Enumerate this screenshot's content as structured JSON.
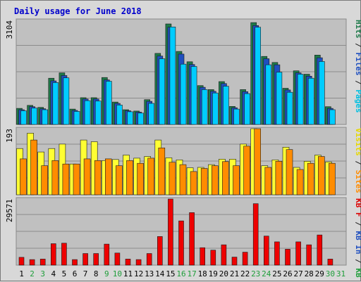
{
  "chart_data": {
    "type": "bar",
    "title": "Daily usage for June 2018",
    "categories": [
      "1",
      "2",
      "3",
      "4",
      "5",
      "6",
      "7",
      "8",
      "9",
      "10",
      "11",
      "12",
      "13",
      "14",
      "15",
      "16",
      "17",
      "18",
      "19",
      "20",
      "21",
      "22",
      "23",
      "24",
      "25",
      "26",
      "27",
      "28",
      "29",
      "30",
      "31"
    ],
    "weekend_days": [
      "2",
      "3",
      "9",
      "10",
      "16",
      "17",
      "23",
      "24",
      "30",
      "31"
    ],
    "panels": [
      {
        "id": "hits",
        "max_label": "3104",
        "ymax": 3104,
        "right_labels": [
          {
            "text": "Hits",
            "color": "#1e7a4a"
          },
          {
            "text": " / ",
            "color": "#222222"
          },
          {
            "text": "Files",
            "color": "#1f4fbf"
          },
          {
            "text": " / ",
            "color": "#222222"
          },
          {
            "text": "Pages",
            "color": "#00bfe0"
          }
        ],
        "series": [
          {
            "name": "Hits",
            "color": "#1e7a4a",
            "values": [
              480,
              570,
              510,
              1380,
              1540,
              460,
              800,
              800,
              1400,
              670,
              440,
              400,
              740,
              2120,
              3000,
              2180,
              1870,
              1160,
              1040,
              1280,
              540,
              1040,
              3040,
              2030,
              1850,
              1080,
              1600,
              1500,
              2070,
              530,
              0
            ]
          },
          {
            "name": "Files",
            "color": "#1f4fbf",
            "values": [
              440,
              530,
              470,
              1300,
              1460,
              420,
              760,
              760,
              1330,
              630,
              410,
              370,
              690,
              2040,
              2900,
              2100,
              1790,
              1110,
              990,
              1220,
              500,
              980,
              2950,
              1960,
              1780,
              1030,
              1540,
              1440,
              1990,
              480,
              0
            ]
          },
          {
            "name": "Pages",
            "color": "#00ccff",
            "values": [
              410,
              490,
              440,
              1250,
              1390,
              390,
              710,
              700,
              1290,
              580,
              380,
              340,
              630,
              1960,
              2910,
              1800,
              1730,
              1040,
              940,
              1140,
              460,
              920,
              2900,
              1780,
              1560,
              960,
              1500,
              1380,
              1880,
              440,
              0
            ]
          }
        ]
      },
      {
        "id": "visits",
        "max_label": "193",
        "ymax": 193,
        "right_labels": [
          {
            "text": "Visits",
            "color": "#e6d800"
          },
          {
            "text": " / ",
            "color": "#222222"
          },
          {
            "text": "Sites",
            "color": "#ff8c00"
          }
        ],
        "series": [
          {
            "name": "Visits",
            "color": "#ffff33",
            "values": [
              135,
              180,
              125,
              135,
              148,
              90,
              160,
              155,
              100,
              103,
              116,
              107,
              112,
              160,
              108,
              102,
              79,
              80,
              88,
              104,
              104,
              148,
              193,
              85,
              102,
              139,
              80,
              98,
              116,
              96,
              0
            ]
          },
          {
            "name": "Sites",
            "color": "#ff8c00",
            "values": [
              105,
              160,
              85,
              100,
              90,
              90,
              105,
              100,
              105,
              85,
              100,
              92,
              107,
              137,
              95,
              88,
              68,
              77,
              85,
              97,
              85,
              142,
              193,
              80,
              98,
              132,
              74,
              92,
              112,
              92,
              0
            ]
          }
        ]
      },
      {
        "id": "kbytes",
        "max_label": "29571",
        "ymax": 29571,
        "right_labels": [
          {
            "text": "KB F",
            "color": "#dd0000"
          },
          {
            "text": " / ",
            "color": "#222222"
          },
          {
            "text": "KB In",
            "color": "#1f4fbf"
          },
          {
            "text": " / ",
            "color": "#222222"
          },
          {
            "text": "KB Out",
            "color": "#1e9e3a"
          }
        ],
        "series": [
          {
            "name": "KB F",
            "color": "#ee0000",
            "values": [
              3500,
              2500,
              2700,
              9600,
              9800,
              2500,
              5200,
              5200,
              9400,
              5400,
              2700,
              2500,
              5200,
              12800,
              29571,
              19800,
              23500,
              7800,
              6700,
              9100,
              3600,
              5800,
              27500,
              13000,
              10400,
              7100,
              10400,
              9100,
              13500,
              2700,
              0
            ]
          }
        ]
      }
    ]
  }
}
